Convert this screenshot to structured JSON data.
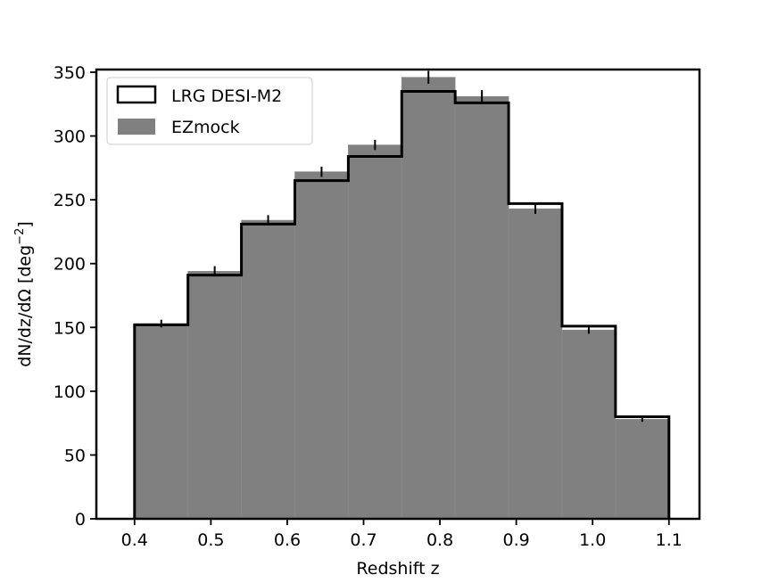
{
  "chart_data": {
    "type": "bar",
    "bin_edges": [
      0.4,
      0.47,
      0.54,
      0.61,
      0.68,
      0.75,
      0.82,
      0.89,
      0.96,
      1.03,
      1.1
    ],
    "series": [
      {
        "name": "LRG DESI-M2",
        "style": "step",
        "color": "#000000",
        "values": [
          152,
          191,
          231,
          265,
          284,
          335,
          326,
          247,
          151,
          80
        ]
      },
      {
        "name": "EZmock",
        "style": "filled",
        "color": "#808080",
        "values": [
          153,
          194,
          234,
          272,
          293,
          346,
          331,
          243,
          148,
          78
        ],
        "errors": [
          3,
          4,
          4,
          4,
          4,
          5,
          5,
          4,
          3,
          2
        ]
      }
    ],
    "xlabel": "Redshift z",
    "ylabel": "dN/dz/dΩ [deg",
    "ylabel_sup": "−2",
    "ylabel_end": "]",
    "xlim": [
      0.35,
      1.14
    ],
    "ylim": [
      0,
      350
    ],
    "xticks": [
      "0.4",
      "0.5",
      "0.6",
      "0.7",
      "0.8",
      "0.9",
      "1.0",
      "1.1"
    ],
    "xtick_values": [
      0.4,
      0.5,
      0.6,
      0.7,
      0.8,
      0.9,
      1.0,
      1.1
    ],
    "yticks": [
      "0",
      "50",
      "100",
      "150",
      "200",
      "250",
      "300",
      "350"
    ],
    "ytick_values": [
      0,
      50,
      100,
      150,
      200,
      250,
      300,
      350
    ],
    "legend_position": "top-left",
    "grid": false
  }
}
